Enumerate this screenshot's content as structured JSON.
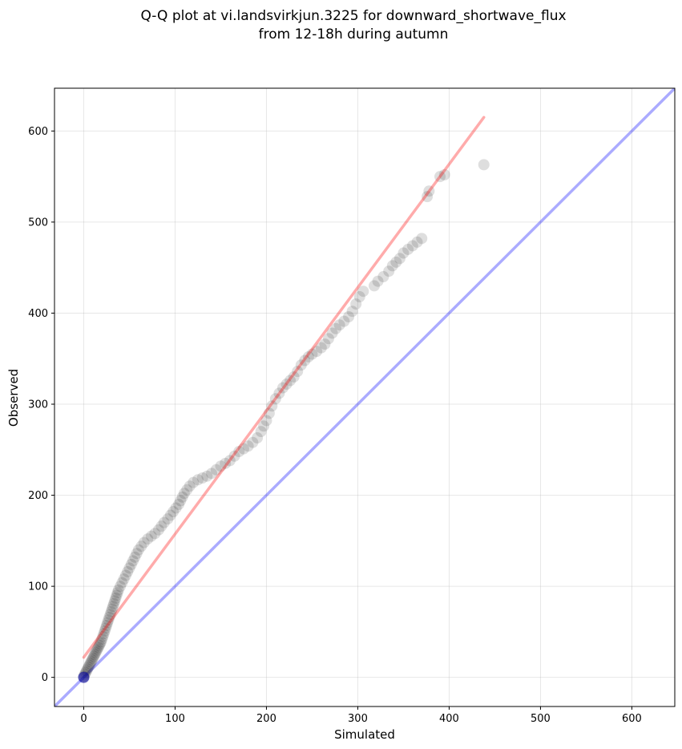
{
  "chart_data": {
    "type": "scatter",
    "title_line1": "Q-Q plot at vi.landsvirkjun.3225 for downward_shortwave_flux",
    "title_line2": "from 12-18h during autumn",
    "xlabel": "Simulated",
    "ylabel": "Observed",
    "xlim": [
      -32,
      647
    ],
    "ylim": [
      -32,
      647
    ],
    "xticks": [
      0,
      100,
      200,
      300,
      400,
      500,
      600
    ],
    "yticks": [
      0,
      100,
      200,
      300,
      400,
      500,
      600
    ],
    "grid": true,
    "colors": {
      "points": "#000000",
      "identity_line": "#0000ff",
      "fit_line": "#ff0000",
      "zero_point": "#0000aa"
    },
    "identity_line": {
      "x": [
        -32,
        647
      ],
      "y": [
        -32,
        647
      ]
    },
    "fit_line": {
      "x": [
        0,
        438
      ],
      "y": [
        22,
        615
      ]
    },
    "points": [
      [
        0,
        0
      ],
      [
        0,
        1
      ],
      [
        1,
        3
      ],
      [
        2,
        5
      ],
      [
        3,
        7
      ],
      [
        4,
        9
      ],
      [
        5,
        11
      ],
      [
        6,
        13
      ],
      [
        7,
        15
      ],
      [
        8,
        17
      ],
      [
        9,
        19
      ],
      [
        10,
        21
      ],
      [
        11,
        23
      ],
      [
        12,
        25
      ],
      [
        13,
        27
      ],
      [
        14,
        29
      ],
      [
        15,
        31
      ],
      [
        16,
        33
      ],
      [
        17,
        35
      ],
      [
        18,
        37
      ],
      [
        19,
        39
      ],
      [
        20,
        42
      ],
      [
        21,
        45
      ],
      [
        22,
        48
      ],
      [
        23,
        51
      ],
      [
        24,
        54
      ],
      [
        25,
        57
      ],
      [
        26,
        60
      ],
      [
        27,
        63
      ],
      [
        28,
        66
      ],
      [
        29,
        69
      ],
      [
        30,
        72
      ],
      [
        31,
        75
      ],
      [
        32,
        78
      ],
      [
        33,
        81
      ],
      [
        34,
        84
      ],
      [
        35,
        87
      ],
      [
        36,
        90
      ],
      [
        37,
        93
      ],
      [
        38,
        96
      ],
      [
        40,
        100
      ],
      [
        42,
        104
      ],
      [
        44,
        108
      ],
      [
        46,
        112
      ],
      [
        48,
        116
      ],
      [
        50,
        120
      ],
      [
        52,
        124
      ],
      [
        54,
        128
      ],
      [
        56,
        132
      ],
      [
        58,
        136
      ],
      [
        60,
        140
      ],
      [
        63,
        144
      ],
      [
        66,
        148
      ],
      [
        70,
        152
      ],
      [
        74,
        155
      ],
      [
        78,
        158
      ],
      [
        82,
        162
      ],
      [
        85,
        166
      ],
      [
        88,
        170
      ],
      [
        92,
        174
      ],
      [
        95,
        178
      ],
      [
        98,
        182
      ],
      [
        101,
        186
      ],
      [
        104,
        190
      ],
      [
        106,
        194
      ],
      [
        108,
        198
      ],
      [
        110,
        202
      ],
      [
        113,
        206
      ],
      [
        116,
        210
      ],
      [
        120,
        214
      ],
      [
        125,
        217
      ],
      [
        130,
        219
      ],
      [
        135,
        221
      ],
      [
        140,
        224
      ],
      [
        145,
        228
      ],
      [
        150,
        232
      ],
      [
        155,
        235
      ],
      [
        160,
        238
      ],
      [
        165,
        243
      ],
      [
        170,
        248
      ],
      [
        175,
        251
      ],
      [
        180,
        254
      ],
      [
        185,
        258
      ],
      [
        190,
        263
      ],
      [
        194,
        270
      ],
      [
        197,
        276
      ],
      [
        200,
        282
      ],
      [
        203,
        290
      ],
      [
        206,
        298
      ],
      [
        210,
        306
      ],
      [
        214,
        312
      ],
      [
        218,
        318
      ],
      [
        222,
        322
      ],
      [
        226,
        326
      ],
      [
        230,
        330
      ],
      [
        234,
        336
      ],
      [
        238,
        343
      ],
      [
        242,
        348
      ],
      [
        246,
        352
      ],
      [
        250,
        355
      ],
      [
        255,
        358
      ],
      [
        260,
        362
      ],
      [
        264,
        366
      ],
      [
        268,
        372
      ],
      [
        272,
        378
      ],
      [
        276,
        383
      ],
      [
        280,
        387
      ],
      [
        285,
        391
      ],
      [
        290,
        396
      ],
      [
        294,
        402
      ],
      [
        298,
        410
      ],
      [
        302,
        418
      ],
      [
        306,
        424
      ],
      [
        318,
        430
      ],
      [
        322,
        435
      ],
      [
        328,
        440
      ],
      [
        334,
        446
      ],
      [
        338,
        452
      ],
      [
        342,
        456
      ],
      [
        346,
        460
      ],
      [
        350,
        466
      ],
      [
        355,
        470
      ],
      [
        360,
        474
      ],
      [
        365,
        478
      ],
      [
        370,
        482
      ],
      [
        376,
        528
      ],
      [
        378,
        534
      ],
      [
        390,
        550
      ],
      [
        395,
        552
      ],
      [
        438,
        563
      ]
    ]
  }
}
